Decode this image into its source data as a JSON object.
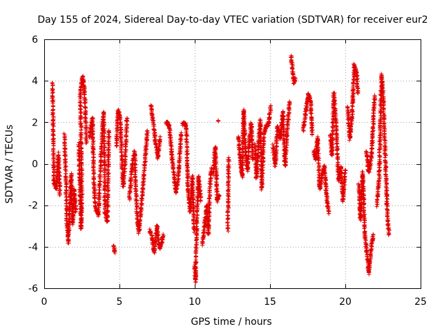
{
  "chart_data": {
    "type": "scatter",
    "title": "Day 155 of 2024, Sidereal Day-to-day VTEC variation (SDTVAR) for receiver eur2",
    "xlabel": "GPS time / hours",
    "ylabel": "SDTVAR / TECUs",
    "xlim": [
      0,
      25
    ],
    "ylim": [
      -6,
      6
    ],
    "x_ticks": [
      0,
      5,
      10,
      15,
      20,
      25
    ],
    "y_ticks": [
      -6,
      -4,
      -2,
      0,
      2,
      4,
      6
    ],
    "x_tick_labels": [
      "0",
      "5",
      "10",
      "15",
      "20",
      "25"
    ],
    "y_tick_labels": [
      "-6",
      "-4",
      "-2",
      "0",
      "2",
      "4",
      "6"
    ],
    "grid": true,
    "marker": "plus",
    "series": [
      {
        "name": "SDTVAR",
        "color": "#e00000",
        "segments": [
          [
            [
              0.55,
              3.9
            ],
            [
              0.6,
              1.2
            ],
            [
              0.65,
              -0.9
            ],
            [
              0.8,
              -1.2
            ],
            [
              0.95,
              0.5
            ],
            [
              1.05,
              -1.5
            ]
          ],
          [
            [
              1.35,
              1.4
            ],
            [
              1.45,
              -1.0
            ],
            [
              1.5,
              -2.8
            ],
            [
              1.6,
              -3.8
            ],
            [
              1.7,
              -2.2
            ],
            [
              1.8,
              -0.5
            ],
            [
              1.9,
              -2.9
            ],
            [
              2.0,
              -1.2
            ],
            [
              2.1,
              -2.3
            ]
          ],
          [
            [
              2.3,
              1.0
            ],
            [
              2.35,
              -0.5
            ],
            [
              2.45,
              -3.2
            ],
            [
              2.5,
              -1.5
            ],
            [
              2.4,
              3.4
            ],
            [
              2.55,
              4.2
            ],
            [
              2.7,
              3.3
            ],
            [
              2.8,
              1.0
            ]
          ],
          [
            [
              3.0,
              1.3
            ],
            [
              3.2,
              2.2
            ],
            [
              3.3,
              -0.8
            ],
            [
              3.4,
              -2.1
            ],
            [
              3.6,
              -2.5
            ],
            [
              3.8,
              0.7
            ],
            [
              3.95,
              2.5
            ],
            [
              4.05,
              -2.4
            ],
            [
              4.2,
              -2.8
            ],
            [
              4.3,
              1.6
            ]
          ],
          [
            [
              4.6,
              -3.9
            ],
            [
              4.7,
              -4.3
            ]
          ],
          [
            [
              4.8,
              0.8
            ],
            [
              4.9,
              2.6
            ],
            [
              5.05,
              2.2
            ],
            [
              5.15,
              0.4
            ],
            [
              5.25,
              -1.1
            ],
            [
              5.35,
              -0.2
            ],
            [
              5.5,
              2.2
            ]
          ],
          [
            [
              5.65,
              -1.7
            ],
            [
              5.8,
              -0.4
            ],
            [
              6.0,
              0.6
            ],
            [
              6.15,
              -2.4
            ],
            [
              6.3,
              -3.3
            ],
            [
              6.5,
              -1.6
            ],
            [
              6.7,
              0.2
            ],
            [
              6.85,
              1.6
            ]
          ],
          [
            [
              7.0,
              -3.2
            ],
            [
              7.15,
              -3.5
            ],
            [
              7.3,
              -4.3
            ],
            [
              7.5,
              -3.0
            ],
            [
              7.65,
              -4.1
            ],
            [
              7.8,
              -3.8
            ],
            [
              7.9,
              -3.4
            ]
          ],
          [
            [
              7.1,
              2.8
            ],
            [
              7.25,
              1.9
            ],
            [
              7.4,
              1.0
            ],
            [
              7.55,
              0.3
            ],
            [
              7.7,
              1.3
            ]
          ],
          [
            [
              8.1,
              2.0
            ],
            [
              8.3,
              1.9
            ],
            [
              8.45,
              0.6
            ],
            [
              8.6,
              -0.4
            ],
            [
              8.75,
              -1.4
            ],
            [
              8.9,
              -0.7
            ],
            [
              9.0,
              0.4
            ],
            [
              9.1,
              1.5
            ]
          ],
          [
            [
              9.2,
              1.9
            ],
            [
              9.35,
              2.0
            ],
            [
              9.45,
              1.7
            ],
            [
              9.55,
              -1.3
            ],
            [
              9.7,
              -2.3
            ],
            [
              9.85,
              -0.6
            ],
            [
              9.95,
              -3.3
            ]
          ],
          [
            [
              10.0,
              -4.9
            ],
            [
              10.05,
              -5.7
            ],
            [
              10.15,
              -2.6
            ],
            [
              10.25,
              -0.6
            ],
            [
              10.4,
              -1.8
            ]
          ],
          [
            [
              10.5,
              -3.9
            ],
            [
              10.65,
              -3.0
            ],
            [
              10.8,
              -2.0
            ],
            [
              10.9,
              -3.4
            ],
            [
              11.0,
              -1.2
            ],
            [
              11.1,
              -0.2
            ]
          ],
          [
            [
              11.25,
              -0.5
            ],
            [
              11.35,
              0.8
            ],
            [
              11.5,
              -1.8
            ],
            [
              11.6,
              -1.5
            ]
          ],
          [
            [
              11.6,
              2.1
            ]
          ],
          [
            [
              12.2,
              -3.2
            ],
            [
              12.25,
              0.3
            ]
          ],
          [
            [
              12.9,
              1.3
            ],
            [
              13.0,
              0.4
            ],
            [
              13.15,
              -0.6
            ],
            [
              13.25,
              2.6
            ],
            [
              13.35,
              0.8
            ],
            [
              13.5,
              -0.3
            ],
            [
              13.6,
              0.8
            ],
            [
              13.75,
              2.0
            ],
            [
              13.85,
              0.2
            ]
          ],
          [
            [
              14.0,
              0.9
            ],
            [
              14.1,
              -0.7
            ],
            [
              14.2,
              0.5
            ],
            [
              14.35,
              2.1
            ],
            [
              14.45,
              -1.2
            ],
            [
              14.6,
              1.5
            ],
            [
              14.75,
              1.8
            ],
            [
              14.9,
              1.9
            ],
            [
              15.05,
              2.8
            ]
          ],
          [
            [
              15.2,
              0.9
            ],
            [
              15.35,
              -0.1
            ],
            [
              15.5,
              1.8
            ],
            [
              15.7,
              1.2
            ],
            [
              15.85,
              2.5
            ],
            [
              16.0,
              -0.1
            ],
            [
              16.15,
              1.7
            ],
            [
              16.3,
              3.0
            ]
          ],
          [
            [
              16.4,
              5.2
            ],
            [
              16.5,
              4.5
            ],
            [
              16.6,
              3.9
            ],
            [
              16.7,
              4.1
            ]
          ],
          [
            [
              17.2,
              1.6
            ],
            [
              17.55,
              3.4
            ],
            [
              17.7,
              3.0
            ],
            [
              17.8,
              1.4
            ]
          ],
          [
            [
              17.9,
              0.6
            ],
            [
              18.05,
              0.2
            ],
            [
              18.15,
              1.3
            ],
            [
              18.3,
              -1.2
            ],
            [
              18.45,
              -0.6
            ],
            [
              18.6,
              -0.1
            ],
            [
              18.75,
              -1.5
            ],
            [
              18.9,
              -2.4
            ]
          ],
          [
            [
              19.0,
              1.4
            ],
            [
              19.1,
              0.4
            ],
            [
              19.25,
              3.4
            ],
            [
              19.4,
              1.8
            ],
            [
              19.55,
              -0.8
            ],
            [
              19.7,
              -0.1
            ],
            [
              19.85,
              -1.8
            ],
            [
              20.0,
              -0.3
            ]
          ],
          [
            [
              20.15,
              2.8
            ],
            [
              20.3,
              1.2
            ],
            [
              20.45,
              2.3
            ],
            [
              20.6,
              4.8
            ],
            [
              20.75,
              4.3
            ],
            [
              20.85,
              3.4
            ]
          ],
          [
            [
              20.9,
              -1.0
            ],
            [
              21.0,
              -2.7
            ],
            [
              21.15,
              -0.4
            ],
            [
              21.3,
              -3.3
            ],
            [
              21.45,
              -4.4
            ],
            [
              21.55,
              -5.3
            ],
            [
              21.7,
              -4.2
            ],
            [
              21.85,
              -3.4
            ]
          ],
          [
            [
              21.4,
              0.6
            ],
            [
              21.55,
              -0.4
            ],
            [
              21.7,
              0.1
            ],
            [
              21.85,
              1.8
            ],
            [
              21.95,
              3.3
            ]
          ],
          [
            [
              22.1,
              -2.0
            ],
            [
              22.25,
              -0.6
            ],
            [
              22.4,
              4.3
            ],
            [
              22.55,
              2.9
            ],
            [
              22.6,
              1.6
            ],
            [
              22.7,
              -0.6
            ],
            [
              22.8,
              -2.5
            ],
            [
              22.9,
              -3.4
            ]
          ]
        ]
      }
    ]
  }
}
